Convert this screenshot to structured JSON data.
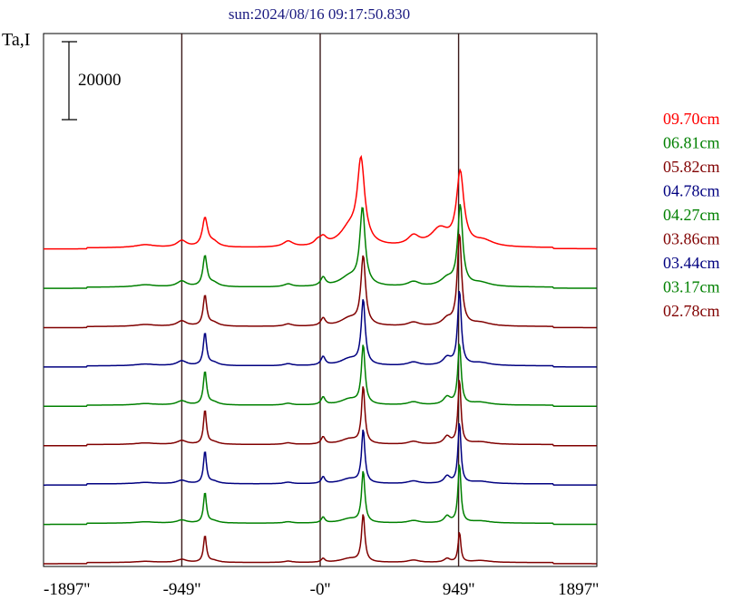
{
  "chart_data": {
    "type": "line",
    "title": "sun:2024/08/16 09:17:50.830",
    "ylabel": "Ta,I",
    "scale_bar_label": "20000",
    "x_ticks": [
      "-1897''",
      "-949''",
      "-0''",
      "949''",
      "1897''"
    ],
    "x_tick_values": [
      -1897,
      -949,
      0,
      949,
      1897
    ],
    "vertical_lines": [
      -949,
      0,
      949
    ],
    "xlim": [
      -1897,
      1897
    ],
    "y_per_bar": 20000,
    "legend_position": "right",
    "series": [
      {
        "name": "09.70cm",
        "color": "#ff0000",
        "baseline": 0,
        "peaks": [
          {
            "x": -1200,
            "a": 0.15,
            "w": 120
          },
          {
            "x": -949,
            "a": 0.35,
            "w": 60
          },
          {
            "x": -790,
            "a": 1.5,
            "w": 32
          },
          {
            "x": -730,
            "a": 0.25,
            "w": 60
          },
          {
            "x": -220,
            "a": 0.3,
            "w": 60
          },
          {
            "x": -20,
            "a": 0.2,
            "w": 40
          },
          {
            "x": 20,
            "a": 0.4,
            "w": 45
          },
          {
            "x": 280,
            "a": 4.3,
            "w": 45
          },
          {
            "x": 200,
            "a": 0.9,
            "w": 120
          },
          {
            "x": 640,
            "a": 0.5,
            "w": 70
          },
          {
            "x": 820,
            "a": 0.9,
            "w": 110
          },
          {
            "x": 960,
            "a": 3.8,
            "w": 45
          },
          {
            "x": 1120,
            "a": 0.3,
            "w": 120
          }
        ]
      },
      {
        "name": "06.81cm",
        "color": "#008000",
        "baseline": 0,
        "peaks": [
          {
            "x": -1200,
            "a": 0.12,
            "w": 120
          },
          {
            "x": -949,
            "a": 0.3,
            "w": 60
          },
          {
            "x": -790,
            "a": 1.6,
            "w": 25
          },
          {
            "x": -730,
            "a": 0.2,
            "w": 60
          },
          {
            "x": -220,
            "a": 0.15,
            "w": 50
          },
          {
            "x": 20,
            "a": 0.45,
            "w": 30
          },
          {
            "x": 290,
            "a": 4.0,
            "w": 32
          },
          {
            "x": 200,
            "a": 0.5,
            "w": 120
          },
          {
            "x": 640,
            "a": 0.25,
            "w": 70
          },
          {
            "x": 870,
            "a": 0.4,
            "w": 80
          },
          {
            "x": 960,
            "a": 4.2,
            "w": 30
          },
          {
            "x": 1100,
            "a": 0.2,
            "w": 120
          }
        ]
      },
      {
        "name": "05.82cm",
        "color": "#800000",
        "baseline": 0,
        "peaks": [
          {
            "x": -1200,
            "a": 0.1,
            "w": 120
          },
          {
            "x": -949,
            "a": 0.28,
            "w": 60
          },
          {
            "x": -790,
            "a": 1.6,
            "w": 22
          },
          {
            "x": -730,
            "a": 0.18,
            "w": 60
          },
          {
            "x": -220,
            "a": 0.12,
            "w": 50
          },
          {
            "x": 20,
            "a": 0.4,
            "w": 28
          },
          {
            "x": 295,
            "a": 3.6,
            "w": 28
          },
          {
            "x": 200,
            "a": 0.4,
            "w": 110
          },
          {
            "x": 640,
            "a": 0.2,
            "w": 70
          },
          {
            "x": 870,
            "a": 0.35,
            "w": 60
          },
          {
            "x": 955,
            "a": 4.8,
            "w": 26
          },
          {
            "x": 1100,
            "a": 0.18,
            "w": 120
          }
        ]
      },
      {
        "name": "04.78cm",
        "color": "#000080",
        "baseline": 0,
        "peaks": [
          {
            "x": -1200,
            "a": 0.09,
            "w": 120
          },
          {
            "x": -949,
            "a": 0.25,
            "w": 60
          },
          {
            "x": -790,
            "a": 1.7,
            "w": 20
          },
          {
            "x": -730,
            "a": 0.15,
            "w": 60
          },
          {
            "x": -220,
            "a": 0.1,
            "w": 50
          },
          {
            "x": 20,
            "a": 0.45,
            "w": 26
          },
          {
            "x": 295,
            "a": 3.4,
            "w": 24
          },
          {
            "x": 200,
            "a": 0.35,
            "w": 110
          },
          {
            "x": 640,
            "a": 0.18,
            "w": 70
          },
          {
            "x": 870,
            "a": 0.4,
            "w": 50
          },
          {
            "x": 955,
            "a": 3.9,
            "w": 22
          },
          {
            "x": 1100,
            "a": 0.15,
            "w": 120
          }
        ]
      },
      {
        "name": "04.27cm",
        "color": "#008000",
        "baseline": 0,
        "peaks": [
          {
            "x": -1200,
            "a": 0.08,
            "w": 120
          },
          {
            "x": -949,
            "a": 0.22,
            "w": 60
          },
          {
            "x": -790,
            "a": 1.75,
            "w": 20
          },
          {
            "x": -730,
            "a": 0.14,
            "w": 60
          },
          {
            "x": -220,
            "a": 0.09,
            "w": 50
          },
          {
            "x": 20,
            "a": 0.4,
            "w": 25
          },
          {
            "x": 295,
            "a": 3.1,
            "w": 22
          },
          {
            "x": 200,
            "a": 0.3,
            "w": 110
          },
          {
            "x": 640,
            "a": 0.16,
            "w": 70
          },
          {
            "x": 870,
            "a": 0.4,
            "w": 45
          },
          {
            "x": 955,
            "a": 3.2,
            "w": 20
          },
          {
            "x": 1100,
            "a": 0.14,
            "w": 120
          }
        ]
      },
      {
        "name": "03.86cm",
        "color": "#800000",
        "baseline": 0,
        "peaks": [
          {
            "x": -1200,
            "a": 0.08,
            "w": 120
          },
          {
            "x": -949,
            "a": 0.2,
            "w": 60
          },
          {
            "x": -790,
            "a": 1.8,
            "w": 18
          },
          {
            "x": -730,
            "a": 0.12,
            "w": 60
          },
          {
            "x": -220,
            "a": 0.08,
            "w": 50
          },
          {
            "x": 20,
            "a": 0.38,
            "w": 24
          },
          {
            "x": 295,
            "a": 3.0,
            "w": 20
          },
          {
            "x": 200,
            "a": 0.28,
            "w": 110
          },
          {
            "x": 640,
            "a": 0.15,
            "w": 70
          },
          {
            "x": 870,
            "a": 0.4,
            "w": 40
          },
          {
            "x": 955,
            "a": 3.4,
            "w": 18
          },
          {
            "x": 1100,
            "a": 0.13,
            "w": 120
          }
        ]
      },
      {
        "name": "03.44cm",
        "color": "#000080",
        "baseline": 0,
        "peaks": [
          {
            "x": -1200,
            "a": 0.07,
            "w": 120
          },
          {
            "x": -949,
            "a": 0.18,
            "w": 60
          },
          {
            "x": -790,
            "a": 1.7,
            "w": 18
          },
          {
            "x": -730,
            "a": 0.12,
            "w": 60
          },
          {
            "x": -220,
            "a": 0.08,
            "w": 50
          },
          {
            "x": 20,
            "a": 0.35,
            "w": 22
          },
          {
            "x": 295,
            "a": 2.8,
            "w": 20
          },
          {
            "x": 200,
            "a": 0.25,
            "w": 110
          },
          {
            "x": 640,
            "a": 0.14,
            "w": 70
          },
          {
            "x": 870,
            "a": 0.38,
            "w": 38
          },
          {
            "x": 955,
            "a": 3.2,
            "w": 18
          },
          {
            "x": 1100,
            "a": 0.12,
            "w": 120
          }
        ]
      },
      {
        "name": "03.17cm",
        "color": "#008000",
        "baseline": 0,
        "peaks": [
          {
            "x": -1200,
            "a": 0.07,
            "w": 120
          },
          {
            "x": -949,
            "a": 0.16,
            "w": 60
          },
          {
            "x": -790,
            "a": 1.6,
            "w": 18
          },
          {
            "x": -730,
            "a": 0.11,
            "w": 60
          },
          {
            "x": -220,
            "a": 0.07,
            "w": 50
          },
          {
            "x": 20,
            "a": 0.3,
            "w": 22
          },
          {
            "x": 295,
            "a": 2.7,
            "w": 20
          },
          {
            "x": 200,
            "a": 0.22,
            "w": 110
          },
          {
            "x": 640,
            "a": 0.13,
            "w": 70
          },
          {
            "x": 870,
            "a": 0.35,
            "w": 36
          },
          {
            "x": 955,
            "a": 3.1,
            "w": 18
          },
          {
            "x": 1100,
            "a": 0.11,
            "w": 120
          }
        ]
      },
      {
        "name": "02.78cm",
        "color": "#800000",
        "baseline": 0,
        "peaks": [
          {
            "x": -1200,
            "a": 0.06,
            "w": 120
          },
          {
            "x": -949,
            "a": 0.16,
            "w": 60
          },
          {
            "x": -790,
            "a": 1.4,
            "w": 18
          },
          {
            "x": -730,
            "a": 0.1,
            "w": 60
          },
          {
            "x": -220,
            "a": 0.07,
            "w": 50
          },
          {
            "x": 20,
            "a": 0.2,
            "w": 22
          },
          {
            "x": 295,
            "a": 2.5,
            "w": 20
          },
          {
            "x": 200,
            "a": 0.2,
            "w": 110
          },
          {
            "x": 640,
            "a": 0.12,
            "w": 70
          },
          {
            "x": 870,
            "a": 0.2,
            "w": 36
          },
          {
            "x": 955,
            "a": 1.6,
            "w": 16
          },
          {
            "x": 1100,
            "a": 0.1,
            "w": 120
          }
        ]
      }
    ]
  }
}
